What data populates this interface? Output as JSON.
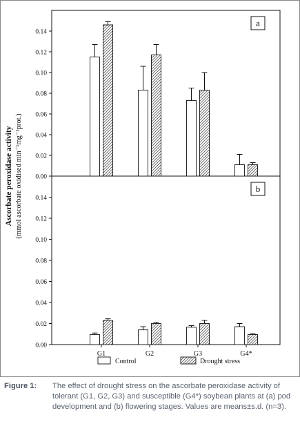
{
  "chart_data": [
    {
      "panel_label": "a",
      "type": "bar",
      "categories": [
        "G1",
        "G2",
        "G3",
        "G4*"
      ],
      "series": [
        {
          "name": "Control",
          "values": [
            0.115,
            0.083,
            0.073,
            0.011
          ],
          "errors": [
            0.012,
            0.023,
            0.012,
            0.01
          ]
        },
        {
          "name": "Drought stress",
          "values": [
            0.146,
            0.117,
            0.083,
            0.011
          ],
          "errors": [
            0.003,
            0.01,
            0.017,
            0.002
          ]
        }
      ],
      "ylim": [
        0,
        0.16
      ],
      "yticks": [
        "0.00",
        "0.02",
        "0.04",
        "0.06",
        "0.08",
        "0.10",
        "0.12",
        "0.14"
      ]
    },
    {
      "panel_label": "b",
      "type": "bar",
      "categories": [
        "G1",
        "G2",
        "G3",
        "G4*"
      ],
      "series": [
        {
          "name": "Control",
          "values": [
            0.0095,
            0.014,
            0.0165,
            0.017
          ],
          "errors": [
            0.0015,
            0.003,
            0.0015,
            0.003
          ]
        },
        {
          "name": "Drought stress",
          "values": [
            0.023,
            0.02,
            0.02,
            0.0095
          ],
          "errors": [
            0.0015,
            0.001,
            0.003,
            0.0008
          ]
        }
      ],
      "ylim": [
        0,
        0.16
      ],
      "yticks": [
        "0.00",
        "0.02",
        "0.04",
        "0.06",
        "0.08",
        "0.10",
        "0.12",
        "0.14"
      ]
    }
  ],
  "ylabel_line1": "Ascorbate peroxidase activity",
  "ylabel_line2": "(mmol ascorbate oxidised min⁻¹mg⁻¹prot.)",
  "legend": [
    "Control",
    "Drought stress"
  ],
  "caption": {
    "label": "Figure 1:",
    "text": "The effect of drought stress on the ascorbate peroxidase activity of tolerant (G1, G2, G3) and susceptible (G4*) soybean plants at (a) pod development and (b) flowering stages. Values are means±s.d. (n=3)."
  }
}
